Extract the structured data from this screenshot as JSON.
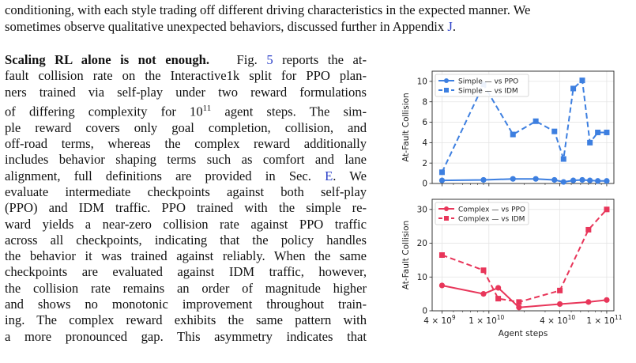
{
  "paper": {
    "top_line_1": "conditioning, with each style trading off different driving characteristics in the expected manner. We",
    "top_line_2_pre": "sometimes observe qualitative unexpected behaviors, discussed further in Appendix ",
    "top_line_2_link": "J",
    "top_line_2_post": ".",
    "heading": "Scaling RL alone is not enough.",
    "para_lines": [
      {
        "segs": [
          {
            "t": "Fig. "
          },
          {
            "t": "5",
            "link": true
          },
          {
            "t": " reports the at-"
          }
        ]
      },
      {
        "segs": [
          {
            "t": "fault collision rate on the Interactive1k split for PPO plan-"
          }
        ]
      },
      {
        "segs": [
          {
            "t": "ners trained via self-play under two reward formulations"
          }
        ]
      },
      {
        "segs": [
          {
            "t": "of differing complexity for 10"
          },
          {
            "t": "11",
            "sup": true
          },
          {
            "t": " agent steps.  The sim-"
          }
        ]
      },
      {
        "segs": [
          {
            "t": "ple reward covers only goal completion, collision, and"
          }
        ]
      },
      {
        "segs": [
          {
            "t": "off-road terms, whereas the complex reward additionally"
          }
        ]
      },
      {
        "segs": [
          {
            "t": "includes behavior shaping terms such as comfort and lane"
          }
        ]
      },
      {
        "segs": [
          {
            "t": "alignment, full definitions are provided in Sec. "
          },
          {
            "t": "E",
            "link": true
          },
          {
            "t": ". We"
          }
        ]
      },
      {
        "segs": [
          {
            "t": "evaluate intermediate checkpoints against both self-play"
          }
        ]
      },
      {
        "segs": [
          {
            "t": "(PPO) and IDM traffic. PPO trained with the simple re-"
          }
        ]
      },
      {
        "segs": [
          {
            "t": "ward yields a near-zero collision rate against PPO traffic"
          }
        ]
      },
      {
        "segs": [
          {
            "t": "across all checkpoints, indicating that the policy handles"
          }
        ]
      },
      {
        "segs": [
          {
            "t": "the behavior it was trained against reliably. When the same"
          }
        ]
      },
      {
        "segs": [
          {
            "t": "checkpoints are evaluated against IDM traffic, however,"
          }
        ]
      },
      {
        "segs": [
          {
            "t": "the collision rate remains an order of magnitude higher"
          }
        ]
      },
      {
        "segs": [
          {
            "t": "and shows no monotonic improvement throughout train-"
          }
        ]
      },
      {
        "segs": [
          {
            "t": "ing. The complex reward exhibits the same pattern with"
          }
        ]
      },
      {
        "segs": [
          {
            "t": "a more pronounced gap.  This asymmetry indicates that"
          }
        ]
      }
    ]
  },
  "chart_data": [
    {
      "type": "line",
      "xscale": "log",
      "ylabel": "At-Fault Collision",
      "ylim": [
        0,
        11
      ],
      "yticks": [
        0,
        2,
        4,
        6,
        8,
        10
      ],
      "legend": "top-left",
      "grid": true,
      "series": [
        {
          "name": "Simple — vs PPO",
          "color": "#3d7fe0",
          "dashed": false,
          "marker": "circle",
          "x": [
            4000000000.0,
            9000000000.0,
            16000000000.0,
            25000000000.0,
            36000000000.0,
            43000000000.0,
            52000000000.0,
            62000000000.0,
            72000000000.0,
            84000000000.0,
            100000000000.0
          ],
          "y": [
            0.3,
            0.35,
            0.45,
            0.45,
            0.35,
            0.15,
            0.3,
            0.35,
            0.3,
            0.25,
            0.25
          ]
        },
        {
          "name": "Simple — vs IDM",
          "color": "#3d7fe0",
          "dashed": true,
          "marker": "square",
          "x": [
            4000000000.0,
            9000000000.0,
            16000000000.0,
            25000000000.0,
            36000000000.0,
            43000000000.0,
            52000000000.0,
            62000000000.0,
            72000000000.0,
            84000000000.0,
            100000000000.0
          ],
          "y": [
            1.1,
            9.7,
            4.8,
            6.1,
            5.1,
            2.4,
            9.3,
            10.1,
            4.0,
            5.0,
            5.0
          ]
        }
      ]
    },
    {
      "type": "line",
      "xscale": "log",
      "xlabel": "Agent steps",
      "ylabel": "At-Fault Collision",
      "ylim": [
        0,
        33
      ],
      "yticks": [
        0,
        10,
        20,
        30
      ],
      "xticks": [
        {
          "value": 4000000000.0,
          "base": "4 × 10",
          "exp": "9"
        },
        {
          "value": 10000000000.0,
          "base": "1 × 10",
          "exp": "10"
        },
        {
          "value": 40000000000.0,
          "base": "4 × 10",
          "exp": "10"
        },
        {
          "value": 100000000000.0,
          "base": "1 × 10",
          "exp": "11"
        }
      ],
      "legend": "top-left",
      "grid": true,
      "series": [
        {
          "name": "Complex — vs PPO",
          "color": "#e8365a",
          "dashed": false,
          "marker": "circle",
          "x": [
            4000000000.0,
            9000000000.0,
            12000000000.0,
            18000000000.0,
            40000000000.0,
            70000000000.0,
            100000000000.0
          ],
          "y": [
            7.5,
            5.0,
            6.8,
            1.0,
            2.0,
            2.6,
            3.2
          ]
        },
        {
          "name": "Complex — vs IDM",
          "color": "#e8365a",
          "dashed": true,
          "marker": "square",
          "x": [
            4000000000.0,
            9000000000.0,
            12000000000.0,
            18000000000.0,
            40000000000.0,
            70000000000.0,
            100000000000.0
          ],
          "y": [
            16.5,
            12.0,
            3.6,
            2.6,
            6.0,
            24.0,
            30.0
          ]
        }
      ]
    }
  ]
}
